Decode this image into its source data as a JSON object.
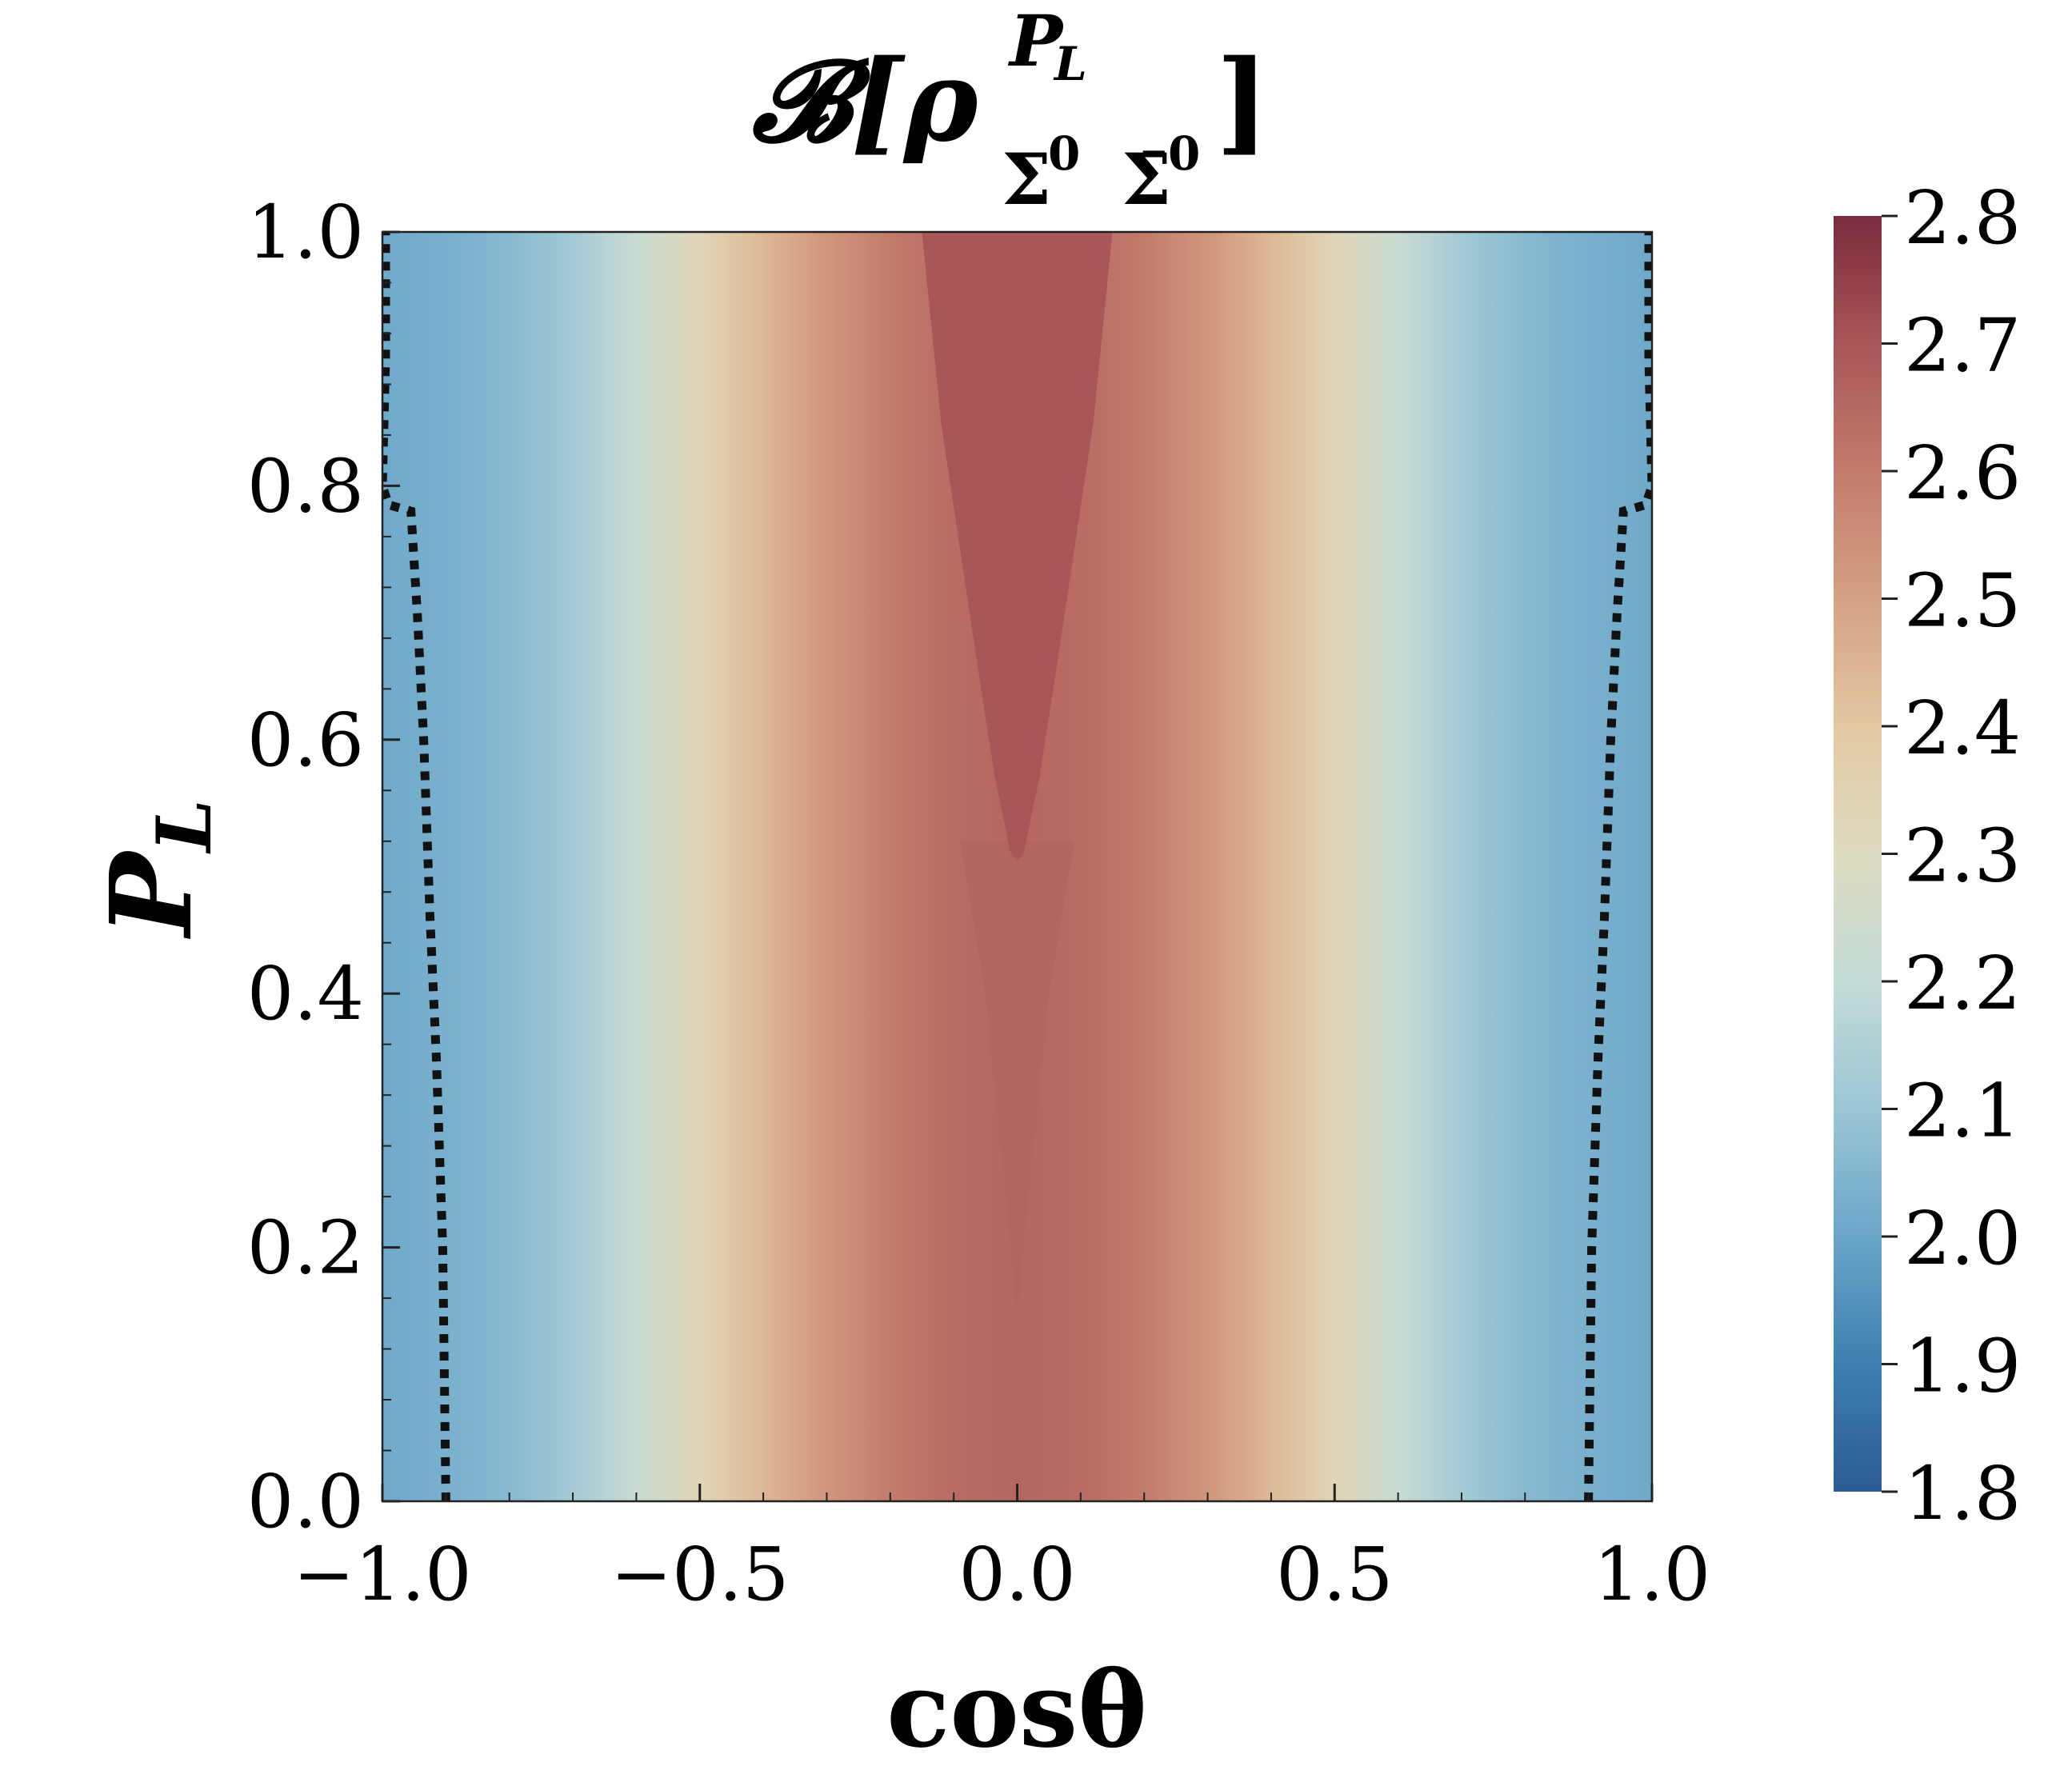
{
  "chart_data": {
    "type": "heatmap",
    "subtype": "filled-contour",
    "title": {
      "main": "𝓑[ρ",
      "superscript": "P",
      "superscript_sub": "L",
      "subscript_1": "Σ",
      "subscript_1_sup": "0",
      "subscript_2": "Σ̄",
      "subscript_2_sup": "0",
      "close": "]"
    },
    "xlabel": "cosθ",
    "ylabel": {
      "base": "P",
      "sub": "L"
    },
    "xlim": [
      -1.0,
      1.0
    ],
    "ylim": [
      0.0,
      1.0
    ],
    "x_ticks": [
      -1.0,
      -0.5,
      0.0,
      0.5,
      1.0
    ],
    "x_tick_labels": [
      "−1.0",
      "−0.5",
      "0.0",
      "0.5",
      "1.0"
    ],
    "y_ticks": [
      0.0,
      0.2,
      0.4,
      0.6,
      0.8,
      1.0
    ],
    "y_tick_labels": [
      "0.0",
      "0.2",
      "0.4",
      "0.6",
      "0.8",
      "1.0"
    ],
    "colormap": "RdYlBu_r (muted)",
    "colorbar": {
      "min": 1.8,
      "max": 2.8,
      "ticks": [
        1.8,
        1.9,
        2.0,
        2.1,
        2.2,
        2.3,
        2.4,
        2.5,
        2.6,
        2.7,
        2.8
      ],
      "tick_labels": [
        "1.8",
        "1.9",
        "2.0",
        "2.1",
        "2.2",
        "2.3",
        "2.4",
        "2.5",
        "2.6",
        "2.7",
        "2.8"
      ],
      "color_stops": [
        {
          "value": 1.8,
          "color": "#2a5b95"
        },
        {
          "value": 1.9,
          "color": "#3e7fb0"
        },
        {
          "value": 2.0,
          "color": "#6aa6c9"
        },
        {
          "value": 2.1,
          "color": "#9cc6d5"
        },
        {
          "value": 2.2,
          "color": "#c4dcd8"
        },
        {
          "value": 2.3,
          "color": "#dedcc1"
        },
        {
          "value": 2.4,
          "color": "#e3c8a2"
        },
        {
          "value": 2.5,
          "color": "#d4a184"
        },
        {
          "value": 2.6,
          "color": "#c37b6c"
        },
        {
          "value": 2.7,
          "color": "#a85657"
        },
        {
          "value": 2.8,
          "color": "#7a2a3c"
        }
      ]
    },
    "field": {
      "profile_cos": [
        -1.0,
        -0.9,
        -0.8,
        -0.7,
        -0.6,
        -0.5,
        -0.4,
        -0.3,
        -0.2,
        -0.1,
        0.0
      ],
      "profile_value": [
        2.01,
        2.03,
        2.06,
        2.12,
        2.22,
        2.33,
        2.44,
        2.53,
        2.6,
        2.64,
        2.655
      ],
      "symmetric": true
    },
    "regions": [
      {
        "name": "high-value region (~2.7) at center top",
        "value": 2.7,
        "boundary_right": [
          [
            0.15,
            1.0
          ],
          [
            0.12,
            0.85
          ],
          [
            0.09,
            0.75
          ],
          [
            0.06,
            0.65
          ],
          [
            0.035,
            0.57
          ],
          [
            0.01,
            0.51
          ],
          [
            0.0,
            0.505
          ]
        ],
        "boundary_left": [
          [
            -0.15,
            1.0
          ],
          [
            -0.12,
            0.85
          ],
          [
            -0.09,
            0.75
          ],
          [
            -0.06,
            0.65
          ],
          [
            -0.035,
            0.57
          ],
          [
            -0.01,
            0.51
          ],
          [
            0.0,
            0.505
          ]
        ]
      },
      {
        "name": "faint core (~2.66) below",
        "value": 2.665,
        "boundary_right": [
          [
            0.09,
            0.52
          ],
          [
            0.05,
            0.4
          ],
          [
            0.02,
            0.25
          ],
          [
            0.0,
            0.15
          ]
        ],
        "boundary_left": [
          [
            -0.09,
            0.52
          ],
          [
            -0.05,
            0.4
          ],
          [
            -0.02,
            0.25
          ],
          [
            0.0,
            0.15
          ]
        ]
      }
    ],
    "boundary_lines": [
      {
        "name": "left dotted boundary",
        "style": "dotted",
        "points": [
          [
            -0.9,
            0.0
          ],
          [
            -0.905,
            0.2
          ],
          [
            -0.915,
            0.35
          ],
          [
            -0.925,
            0.46
          ],
          [
            -0.935,
            0.6
          ],
          [
            -0.945,
            0.7
          ],
          [
            -0.955,
            0.78
          ],
          [
            -0.99,
            0.785
          ],
          [
            -1.0,
            0.8
          ],
          [
            -0.995,
            0.9
          ],
          [
            -0.995,
            1.0
          ]
        ]
      },
      {
        "name": "right dotted boundary",
        "style": "dotted",
        "points": [
          [
            0.9,
            0.0
          ],
          [
            0.905,
            0.2
          ],
          [
            0.915,
            0.35
          ],
          [
            0.925,
            0.46
          ],
          [
            0.935,
            0.6
          ],
          [
            0.945,
            0.7
          ],
          [
            0.955,
            0.78
          ],
          [
            0.99,
            0.785
          ],
          [
            1.0,
            0.8
          ],
          [
            0.995,
            0.9
          ],
          [
            0.995,
            1.0
          ]
        ]
      }
    ]
  }
}
